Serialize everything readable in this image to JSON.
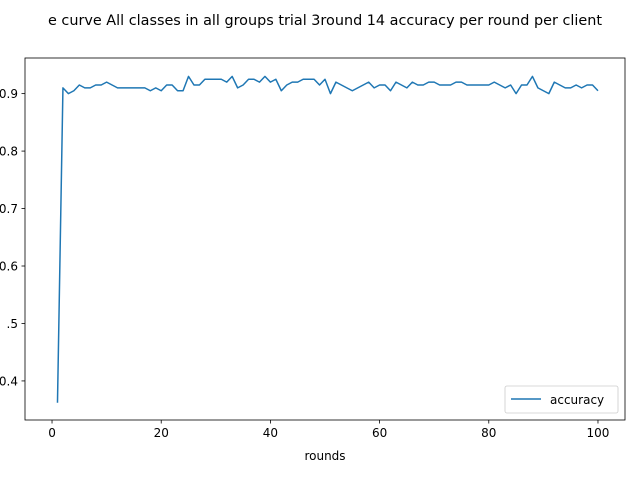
{
  "chart_data": {
    "type": "line",
    "title": "e curve All classes in all groups trial 3round 14 accuracy per round per client",
    "xlabel": "rounds",
    "ylabel": "",
    "xlim": [
      -4.95,
      104.95
    ],
    "ylim": [
      0.332,
      0.962
    ],
    "xticks": [
      0,
      20,
      40,
      60,
      80,
      100
    ],
    "xtick_labels": [
      "0",
      "20",
      "40",
      "60",
      "80",
      "100"
    ],
    "yticks": [
      0.4,
      0.5,
      0.6,
      0.7,
      0.8,
      0.9
    ],
    "ytick_labels": [
      "0.4",
      ".5",
      "0.6",
      "0.7",
      "0.8",
      "0.9"
    ],
    "grid": false,
    "legend_position": "lower-right",
    "series": [
      {
        "name": "accuracy",
        "color": "#1f77b4",
        "x": [
          1,
          2,
          3,
          4,
          5,
          6,
          7,
          8,
          9,
          10,
          11,
          12,
          13,
          14,
          15,
          16,
          17,
          18,
          19,
          20,
          21,
          22,
          23,
          24,
          25,
          26,
          27,
          28,
          29,
          30,
          31,
          32,
          33,
          34,
          35,
          36,
          37,
          38,
          39,
          40,
          41,
          42,
          43,
          44,
          45,
          46,
          47,
          48,
          49,
          50,
          51,
          52,
          53,
          54,
          55,
          56,
          57,
          58,
          59,
          60,
          61,
          62,
          63,
          64,
          65,
          66,
          67,
          68,
          69,
          70,
          71,
          72,
          73,
          74,
          75,
          76,
          77,
          78,
          79,
          80,
          81,
          82,
          83,
          84,
          85,
          86,
          87,
          88,
          89,
          90,
          91,
          92,
          93,
          94,
          95,
          96,
          97,
          98,
          99,
          100
        ],
        "values": [
          0.362,
          0.91,
          0.9,
          0.905,
          0.915,
          0.91,
          0.91,
          0.915,
          0.915,
          0.92,
          0.915,
          0.91,
          0.91,
          0.91,
          0.91,
          0.91,
          0.91,
          0.905,
          0.91,
          0.905,
          0.915,
          0.915,
          0.905,
          0.905,
          0.93,
          0.915,
          0.915,
          0.925,
          0.925,
          0.925,
          0.925,
          0.92,
          0.93,
          0.91,
          0.915,
          0.925,
          0.925,
          0.92,
          0.93,
          0.92,
          0.925,
          0.905,
          0.915,
          0.92,
          0.92,
          0.925,
          0.925,
          0.925,
          0.915,
          0.925,
          0.9,
          0.92,
          0.915,
          0.91,
          0.905,
          0.91,
          0.915,
          0.92,
          0.91,
          0.915,
          0.915,
          0.905,
          0.92,
          0.915,
          0.91,
          0.92,
          0.915,
          0.915,
          0.92,
          0.92,
          0.915,
          0.915,
          0.915,
          0.92,
          0.92,
          0.915,
          0.915,
          0.915,
          0.915,
          0.915,
          0.92,
          0.915,
          0.91,
          0.915,
          0.9,
          0.915,
          0.915,
          0.93,
          0.91,
          0.905,
          0.9,
          0.92,
          0.915,
          0.91,
          0.91,
          0.915,
          0.91,
          0.915,
          0.915,
          0.905
        ]
      }
    ]
  }
}
